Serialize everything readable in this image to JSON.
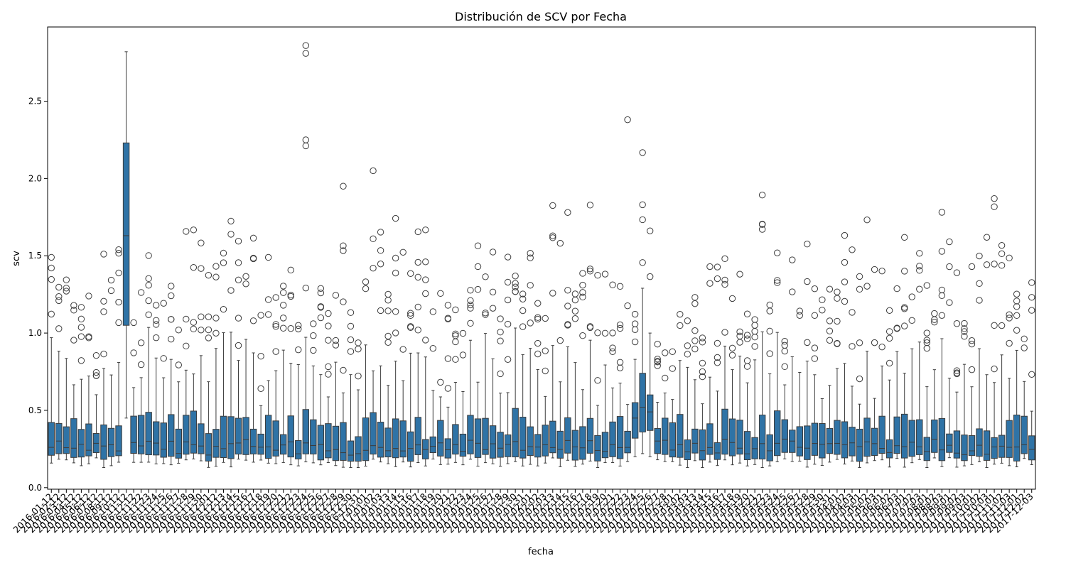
{
  "chart_data": {
    "type": "box",
    "title": "Distribución de SCV por Fecha",
    "xlabel": "fecha",
    "ylabel": "scv",
    "ylim": [
      -0.01,
      2.98
    ],
    "yticks": [
      0.0,
      0.5,
      1.0,
      1.5,
      2.0,
      2.5
    ],
    "grid": false,
    "legend": "none",
    "box_color": "#2f73a6",
    "edge_color": "#3c3c3c",
    "categories": [
      "2016-01-12",
      "2016-02-12",
      "2016-03-12",
      "2016-04-12",
      "2016-05-12",
      "2016-06-12",
      "2016-07-12",
      "2016-08-12",
      "2016-09-12",
      "2016-10-12",
      "2016-11-12",
      "2016-12-12",
      "2016-11-22",
      "2016-11-23",
      "2016-11-24",
      "2016-11-25",
      "2016-11-26",
      "2016-11-27",
      "2016-11-28",
      "2016-11-29",
      "2016-11-30",
      "2016-12-01",
      "2016-12-12",
      "2016-12-13",
      "2016-12-14",
      "2016-12-15",
      "2016-12-16",
      "2016-12-17",
      "2016-12-18",
      "2016-12-19",
      "2016-12-20",
      "2016-12-21",
      "2016-12-22",
      "2016-12-23",
      "2016-12-24",
      "2016-12-25",
      "2016-12-26",
      "2016-12-27",
      "2016-12-28",
      "2016-12-29",
      "2016-12-30",
      "2016-12-31",
      "2017-01-01",
      "2017-01-02",
      "2017-01-03",
      "2017-01-13",
      "2017-01-14",
      "2017-01-15",
      "2017-01-16",
      "2017-01-17",
      "2017-01-18",
      "2017-01-19",
      "2017-01-20",
      "2017-01-21",
      "2017-01-22",
      "2017-01-23",
      "2017-01-24",
      "2017-01-25",
      "2017-01-26",
      "2017-01-27",
      "2017-01-28",
      "2017-01-29",
      "2017-01-30",
      "2017-01-31",
      "2017-02-01",
      "2017-02-02",
      "2017-02-03",
      "2017-02-13",
      "2017-02-14",
      "2017-02-15",
      "2017-02-16",
      "2017-02-17",
      "2017-02-18",
      "2017-02-19",
      "2017-02-20",
      "2017-02-21",
      "2017-02-22",
      "2017-02-23",
      "2017-02-24",
      "2017-02-25",
      "2017-02-26",
      "2017-02-27",
      "2017-02-28",
      "2017-03-01",
      "2017-03-02",
      "2017-03-03",
      "2017-03-13",
      "2017-03-14",
      "2017-03-15",
      "2017-03-16",
      "2017-03-17",
      "2017-03-18",
      "2017-03-19",
      "2017-03-20",
      "2017-03-21",
      "2017-03-22",
      "2017-03-23",
      "2017-03-24",
      "2017-03-25",
      "2017-03-26",
      "2017-03-27",
      "2017-03-28",
      "2017-03-29",
      "2017-03-30",
      "2017-03-31",
      "2017-04-01",
      "2017-04-02",
      "2017-04-03",
      "2017-05-01",
      "2017-05-02",
      "2017-05-03",
      "2017-06-01",
      "2017-06-02",
      "2017-06-03",
      "2017-07-01",
      "2017-07-02",
      "2017-07-03",
      "2017-08-01",
      "2017-08-02",
      "2017-08-03",
      "2017-09-01",
      "2017-09-02",
      "2017-09-03",
      "2017-10-01",
      "2017-10-02",
      "2017-10-03",
      "2017-11-01",
      "2017-11-02",
      "2017-11-03",
      "2017-12-01",
      "2017-12-02",
      "2017-12-03"
    ]
  }
}
